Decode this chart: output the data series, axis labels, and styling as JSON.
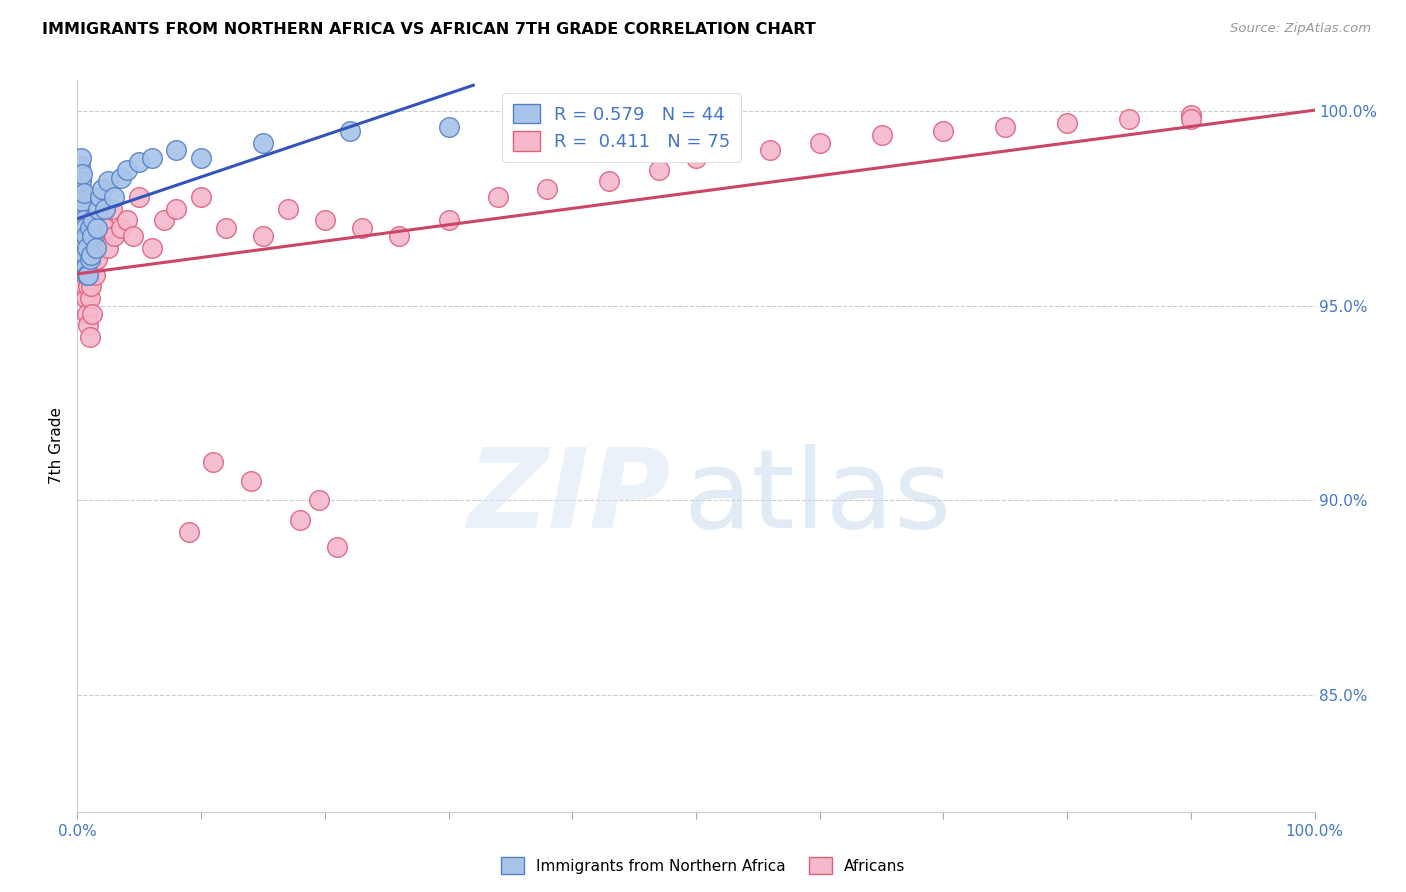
{
  "title": "IMMIGRANTS FROM NORTHERN AFRICA VS AFRICAN 7TH GRADE CORRELATION CHART",
  "source": "Source: ZipAtlas.com",
  "ylabel": "7th Grade",
  "xlim": [
    0.0,
    1.0
  ],
  "ylim": [
    0.82,
    1.008
  ],
  "ytick_positions": [
    0.85,
    0.9,
    0.95,
    1.0
  ],
  "ytick_labels": [
    "85.0%",
    "90.0%",
    "95.0%",
    "100.0%"
  ],
  "blue_color": "#a8c4e8",
  "pink_color": "#f5b8cc",
  "blue_edge_color": "#5580c8",
  "pink_edge_color": "#e0607a",
  "blue_line_color": "#3355bb",
  "pink_line_color": "#cc4466",
  "legend_blue": "R = 0.579   N = 44",
  "legend_pink": "R =  0.411   N = 75",
  "blue_x": [
    0.001,
    0.001,
    0.002,
    0.002,
    0.002,
    0.003,
    0.003,
    0.003,
    0.003,
    0.004,
    0.004,
    0.004,
    0.005,
    0.005,
    0.005,
    0.006,
    0.006,
    0.007,
    0.007,
    0.008,
    0.008,
    0.009,
    0.01,
    0.01,
    0.011,
    0.012,
    0.013,
    0.015,
    0.016,
    0.017,
    0.018,
    0.02,
    0.022,
    0.025,
    0.03,
    0.035,
    0.04,
    0.05,
    0.06,
    0.08,
    0.1,
    0.15,
    0.22,
    0.3
  ],
  "blue_y": [
    0.97,
    0.978,
    0.972,
    0.98,
    0.986,
    0.968,
    0.975,
    0.982,
    0.988,
    0.971,
    0.977,
    0.984,
    0.966,
    0.972,
    0.979,
    0.963,
    0.97,
    0.96,
    0.968,
    0.958,
    0.965,
    0.958,
    0.962,
    0.97,
    0.963,
    0.968,
    0.972,
    0.965,
    0.97,
    0.975,
    0.978,
    0.98,
    0.975,
    0.982,
    0.978,
    0.983,
    0.985,
    0.987,
    0.988,
    0.99,
    0.988,
    0.992,
    0.995,
    0.996
  ],
  "pink_x": [
    0.001,
    0.001,
    0.001,
    0.002,
    0.002,
    0.002,
    0.003,
    0.003,
    0.003,
    0.003,
    0.004,
    0.004,
    0.004,
    0.005,
    0.005,
    0.005,
    0.006,
    0.006,
    0.006,
    0.007,
    0.007,
    0.008,
    0.008,
    0.009,
    0.009,
    0.01,
    0.01,
    0.011,
    0.012,
    0.012,
    0.013,
    0.014,
    0.015,
    0.016,
    0.018,
    0.02,
    0.022,
    0.025,
    0.028,
    0.03,
    0.035,
    0.04,
    0.045,
    0.05,
    0.06,
    0.07,
    0.08,
    0.1,
    0.12,
    0.15,
    0.17,
    0.2,
    0.23,
    0.26,
    0.3,
    0.34,
    0.38,
    0.43,
    0.47,
    0.5,
    0.56,
    0.6,
    0.65,
    0.7,
    0.75,
    0.8,
    0.85,
    0.9,
    0.195,
    0.11,
    0.14,
    0.09,
    0.18,
    0.21,
    0.9
  ],
  "pink_y": [
    0.968,
    0.974,
    0.98,
    0.965,
    0.971,
    0.977,
    0.962,
    0.968,
    0.975,
    0.98,
    0.96,
    0.966,
    0.972,
    0.958,
    0.963,
    0.969,
    0.955,
    0.961,
    0.967,
    0.952,
    0.96,
    0.948,
    0.958,
    0.945,
    0.955,
    0.942,
    0.952,
    0.955,
    0.948,
    0.96,
    0.965,
    0.958,
    0.97,
    0.962,
    0.968,
    0.972,
    0.97,
    0.965,
    0.975,
    0.968,
    0.97,
    0.972,
    0.968,
    0.978,
    0.965,
    0.972,
    0.975,
    0.978,
    0.97,
    0.968,
    0.975,
    0.972,
    0.97,
    0.968,
    0.972,
    0.978,
    0.98,
    0.982,
    0.985,
    0.988,
    0.99,
    0.992,
    0.994,
    0.995,
    0.996,
    0.997,
    0.998,
    0.999,
    0.9,
    0.91,
    0.905,
    0.892,
    0.895,
    0.888,
    0.998
  ]
}
